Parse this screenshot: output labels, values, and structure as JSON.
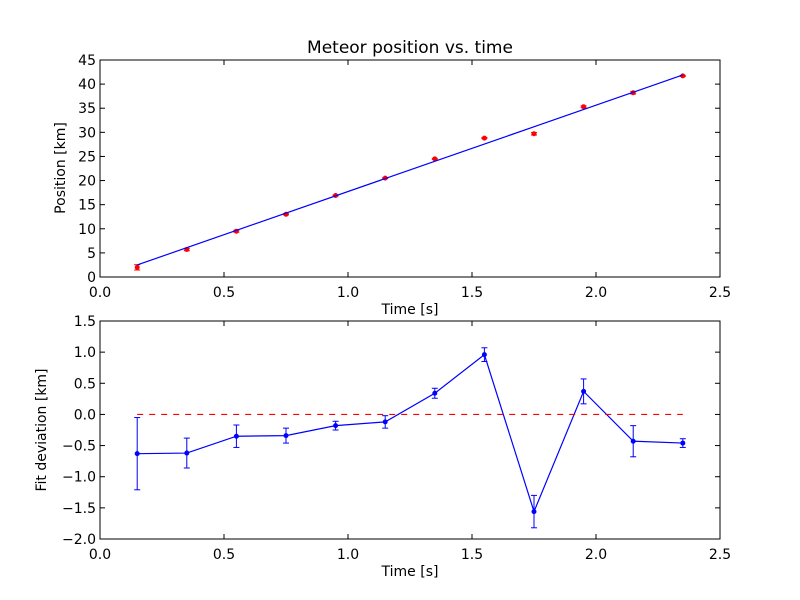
{
  "chart_data": [
    {
      "type": "scatter",
      "title": "Meteor position vs. time",
      "xlabel": "Time [s]",
      "ylabel": "Position [km]",
      "xlim": [
        0.0,
        2.5
      ],
      "ylim": [
        0,
        45
      ],
      "xticks": [
        "0.0",
        "0.5",
        "1.0",
        "1.5",
        "2.0",
        "2.5"
      ],
      "yticks": [
        "0",
        "5",
        "10",
        "15",
        "20",
        "25",
        "30",
        "35",
        "40",
        "45"
      ],
      "grid": false,
      "series": [
        {
          "kind": "errorbar-points",
          "color": "#ff0000",
          "x": [
            0.15,
            0.35,
            0.55,
            0.75,
            0.95,
            1.15,
            1.35,
            1.55,
            1.75,
            1.95,
            2.15,
            2.35
          ],
          "y": [
            2.0,
            5.7,
            9.5,
            13.0,
            16.9,
            20.5,
            24.5,
            28.8,
            29.7,
            35.3,
            38.2,
            41.7
          ],
          "yerr": [
            0.55,
            0.25,
            0.2,
            0.12,
            0.1,
            0.1,
            0.1,
            0.12,
            0.25,
            0.2,
            0.25,
            0.1
          ]
        },
        {
          "kind": "fit-line",
          "color": "#0000ff",
          "x": [
            0.15,
            2.35
          ],
          "y": [
            2.5,
            41.9
          ]
        }
      ]
    },
    {
      "type": "line",
      "title": "",
      "xlabel": "Time [s]",
      "ylabel": "Fit deviation [km]",
      "xlim": [
        0.0,
        2.5
      ],
      "ylim": [
        -2.0,
        1.5
      ],
      "xticks": [
        "0.0",
        "0.5",
        "1.0",
        "1.5",
        "2.0",
        "2.5"
      ],
      "yticks": [
        "−2.0",
        "−1.5",
        "−1.0",
        "−0.5",
        "0.0",
        "0.5",
        "1.0",
        "1.5"
      ],
      "grid": false,
      "series": [
        {
          "kind": "errorbar-line",
          "color": "#0000ff",
          "x": [
            0.15,
            0.35,
            0.55,
            0.75,
            0.95,
            1.15,
            1.35,
            1.55,
            1.75,
            1.95,
            2.15,
            2.35
          ],
          "y": [
            -0.63,
            -0.62,
            -0.35,
            -0.34,
            -0.18,
            -0.12,
            0.34,
            0.96,
            -1.56,
            0.37,
            -0.43,
            -0.46
          ],
          "yerr": [
            0.58,
            0.24,
            0.18,
            0.12,
            0.07,
            0.1,
            0.08,
            0.11,
            0.26,
            0.2,
            0.25,
            0.07
          ]
        },
        {
          "kind": "reference-line",
          "color": "#ff0000",
          "dashed": true,
          "x": [
            0.15,
            2.35
          ],
          "y": [
            0.0,
            0.0
          ]
        }
      ]
    }
  ]
}
